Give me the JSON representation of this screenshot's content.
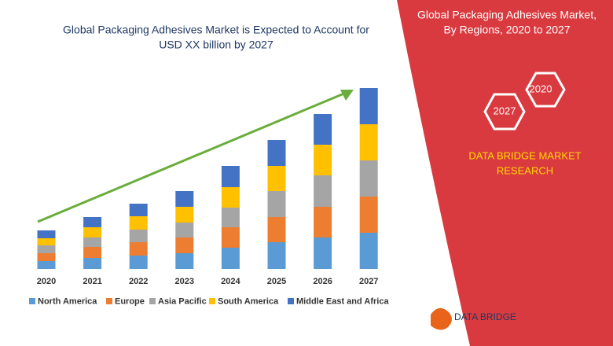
{
  "chart_data": {
    "type": "bar",
    "stacked": true,
    "title": [
      "Global Packaging Adhesives Market is Expected to Account for",
      "USD XX billion by 2027"
    ],
    "categories": [
      "2020",
      "2021",
      "2022",
      "2023",
      "2024",
      "2025",
      "2026",
      "2027"
    ],
    "series": [
      {
        "name": "North America",
        "color": "#5b9bd5",
        "values": [
          10,
          14,
          17,
          20,
          27,
          34,
          40,
          46
        ]
      },
      {
        "name": "Europe",
        "color": "#ed7d31",
        "values": [
          10,
          14,
          17,
          20,
          26,
          32,
          39,
          46
        ]
      },
      {
        "name": "Asia Pacific",
        "color": "#a5a5a5",
        "values": [
          10,
          12,
          16,
          19,
          25,
          33,
          40,
          46
        ]
      },
      {
        "name": "South America",
        "color": "#ffc000",
        "values": [
          9,
          13,
          17,
          20,
          26,
          32,
          39,
          46
        ]
      },
      {
        "name": "Middle East and Africa",
        "color": "#4472c4",
        "values": [
          10,
          13,
          16,
          20,
          27,
          33,
          39,
          46
        ]
      }
    ]
  },
  "panel": {
    "title": [
      "Global Packaging Adhesives Market,",
      "By Regions, 2020 to 2027"
    ],
    "badges": [
      "2020",
      "2027"
    ],
    "brand": [
      "DATA BRIDGE MARKET",
      "RESEARCH"
    ]
  },
  "logo": {
    "text": "DATA BRIDGE"
  }
}
